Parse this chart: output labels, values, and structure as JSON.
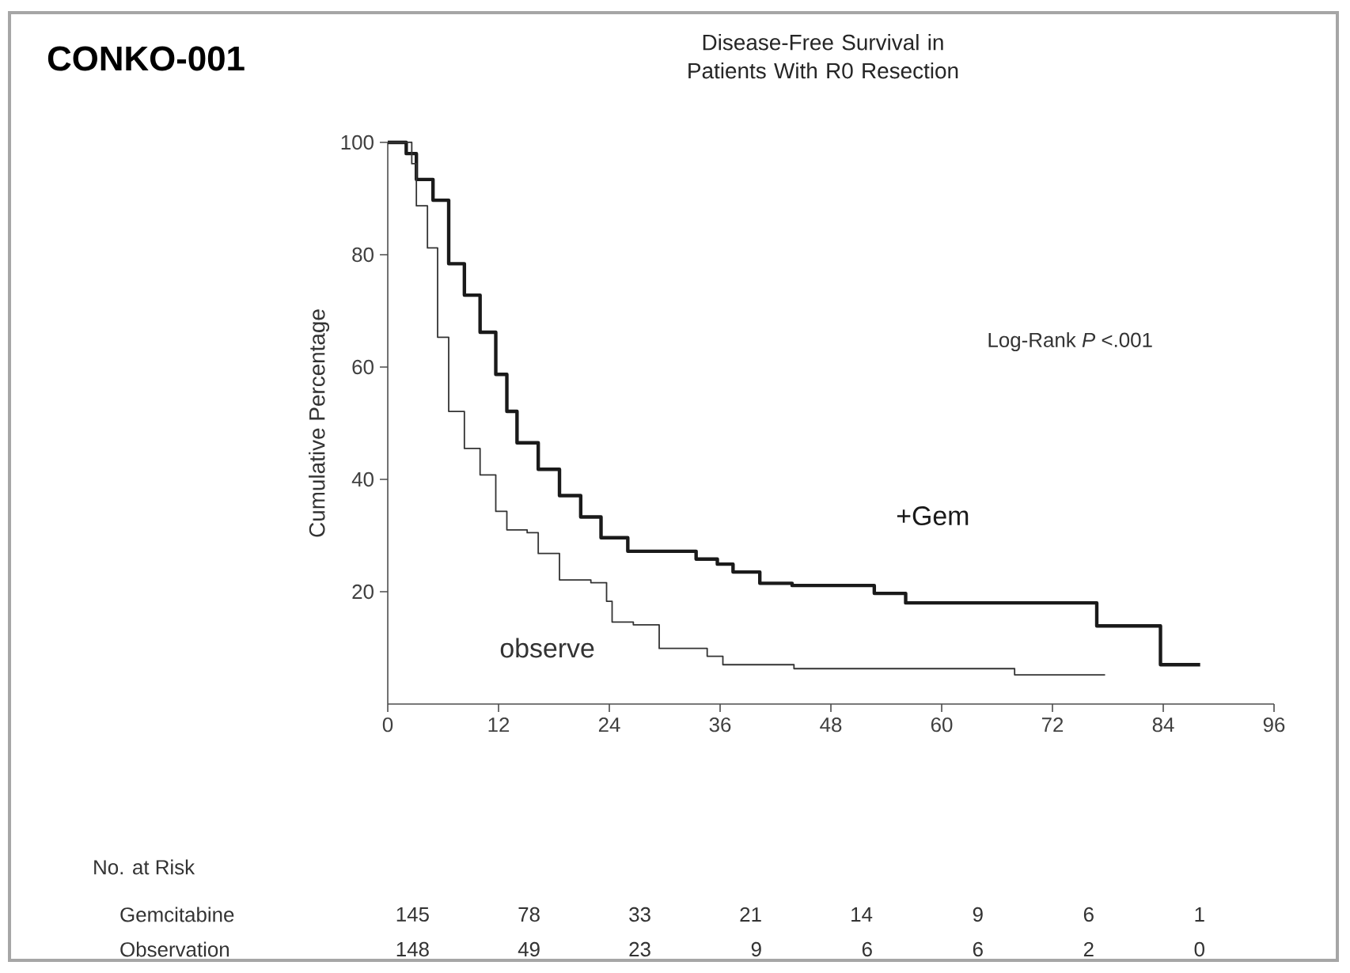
{
  "chart_data": {
    "type": "step",
    "title": "CONKO-001",
    "subtitle": "Disease-Free Survival in Patients With R0 Resection",
    "ylabel": "Cumulative Percentage",
    "xlim": [
      0,
      96
    ],
    "xticks": [
      0,
      12,
      24,
      36,
      48,
      60,
      72,
      84,
      96
    ],
    "ylim": [
      0,
      100
    ],
    "yticks": [
      20,
      40,
      60,
      80,
      100
    ],
    "grid": false,
    "legend": false,
    "series": [
      {
        "name": "+Gem",
        "color": "#1a1a1a",
        "x": [
          0,
          2,
          3.1,
          4.9,
          6.6,
          8.3,
          10,
          11.7,
          12.9,
          14,
          16.3,
          18.6,
          20.9,
          23.1,
          26,
          33.4,
          35.7,
          37.4,
          40.3,
          43.8,
          52.7,
          56.1,
          76.8,
          83.7,
          88
        ],
        "values": [
          100,
          98,
          93.4,
          89.7,
          78.4,
          72.8,
          66.2,
          58.7,
          52.1,
          46.5,
          41.8,
          37.1,
          33.3,
          29.6,
          27.2,
          25.8,
          24.9,
          23.5,
          21.5,
          21.1,
          19.7,
          18,
          13.9,
          7,
          7
        ]
      },
      {
        "name": "observe",
        "color": "#333333",
        "x": [
          0,
          2.6,
          3.1,
          4.3,
          5.4,
          6.6,
          8.3,
          10,
          11.7,
          12.9,
          15.1,
          16.3,
          18.6,
          22,
          23.7,
          24.3,
          26.6,
          29.4,
          34.6,
          36.3,
          44,
          67.9,
          77.7
        ],
        "values": [
          100,
          96.2,
          88.7,
          81.2,
          65.3,
          52.1,
          45.5,
          40.8,
          34.3,
          31,
          30.5,
          26.8,
          22.1,
          21.6,
          18.3,
          14.6,
          14.1,
          9.9,
          8.5,
          7,
          6.3,
          5.2,
          5.2
        ]
      }
    ],
    "annotations": [
      "Log-Rank *P* <.001",
      "No. at Risk",
      "Gemcitabine",
      "145",
      "78",
      "33",
      "21",
      "14",
      "9",
      "6",
      "1",
      "Observation",
      "148",
      "49",
      "23",
      "9",
      "6",
      "6",
      "2",
      "0"
    ]
  }
}
